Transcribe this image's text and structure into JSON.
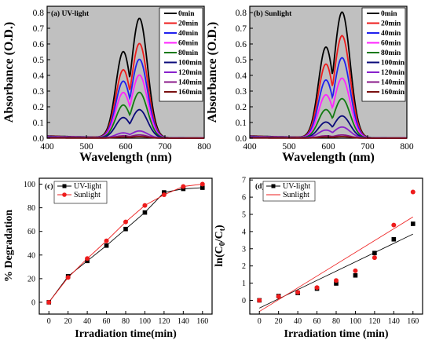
{
  "chart_data": [
    {
      "type": "line",
      "panel_label": "(a) UV-light",
      "xlabel": "Wavelength (nm)",
      "ylabel": "Absorbance (O.D.)",
      "xlim": [
        400,
        800
      ],
      "ylim": [
        0.0,
        0.84
      ],
      "x_ticks": [
        "400",
        "500",
        "600",
        "700",
        "800"
      ],
      "y_ticks": [
        "0.0",
        "0.1",
        "0.2",
        "0.3",
        "0.4",
        "0.5",
        "0.6",
        "0.7",
        "0.8"
      ],
      "background": "#c0c0c0",
      "legend_position": "top-right",
      "peak_wavelength": 635,
      "series": [
        {
          "name": "0min",
          "peak": 0.76,
          "color": "#000000"
        },
        {
          "name": "20min",
          "peak": 0.6,
          "color": "#ee1c1c"
        },
        {
          "name": "40min",
          "peak": 0.5,
          "color": "#2020ee"
        },
        {
          "name": "60min",
          "peak": 0.4,
          "color": "#ff22ff"
        },
        {
          "name": "80min",
          "peak": 0.29,
          "color": "#127a12"
        },
        {
          "name": "100min",
          "peak": 0.18,
          "color": "#0a0a7a"
        },
        {
          "name": "120min",
          "peak": 0.045,
          "color": "#8822cc"
        },
        {
          "name": "140min",
          "peak": 0.02,
          "color": "#8a1a8a"
        },
        {
          "name": "160min",
          "peak": 0.01,
          "color": "#7a1010"
        }
      ]
    },
    {
      "type": "line",
      "panel_label": "(b) Sunlight",
      "xlabel": "Wavelength (nm)",
      "ylabel": "Absorbance (O.D.)",
      "xlim": [
        400,
        800
      ],
      "ylim": [
        0.0,
        0.84
      ],
      "x_ticks": [
        "400",
        "500",
        "600",
        "700",
        "800"
      ],
      "y_ticks": [
        "0.0",
        "0.1",
        "0.2",
        "0.3",
        "0.4",
        "0.5",
        "0.6",
        "0.7",
        "0.8"
      ],
      "background": "#c0c0c0",
      "legend_position": "top-right",
      "peak_wavelength": 635,
      "series": [
        {
          "name": "0min",
          "peak": 0.8,
          "color": "#000000"
        },
        {
          "name": "20min",
          "peak": 0.65,
          "color": "#ee1c1c"
        },
        {
          "name": "40min",
          "peak": 0.51,
          "color": "#2020ee"
        },
        {
          "name": "60min",
          "peak": 0.38,
          "color": "#ff22ff"
        },
        {
          "name": "80min",
          "peak": 0.25,
          "color": "#127a12"
        },
        {
          "name": "100min",
          "peak": 0.14,
          "color": "#0a0a7a"
        },
        {
          "name": "120min",
          "peak": 0.07,
          "color": "#8822cc"
        },
        {
          "name": "140min",
          "peak": 0.02,
          "color": "#8a1a8a"
        },
        {
          "name": "160min",
          "peak": 0.01,
          "color": "#7a1010"
        }
      ]
    },
    {
      "type": "line",
      "panel_label": "(c)",
      "xlabel": "Irradiation time(min)",
      "ylabel": "% Degradation",
      "xlim": [
        -10,
        170
      ],
      "ylim": [
        -10,
        105
      ],
      "x_ticks": [
        "0",
        "20",
        "40",
        "60",
        "80",
        "100",
        "120",
        "140",
        "160"
      ],
      "y_ticks": [
        "0",
        "20",
        "40",
        "60",
        "80",
        "100"
      ],
      "background": "#ffffff",
      "legend_position": "top-left",
      "x": [
        0,
        20,
        40,
        60,
        80,
        100,
        120,
        140,
        160
      ],
      "series": [
        {
          "name": "UV-light",
          "marker": "square",
          "color": "#000000",
          "values": [
            0,
            22,
            35,
            48,
            62,
            76,
            93,
            96,
            97
          ]
        },
        {
          "name": "Sunlight",
          "marker": "circle",
          "color": "#ee1c1c",
          "values": [
            0,
            21,
            37,
            52,
            68,
            82,
            91,
            98,
            100
          ]
        }
      ]
    },
    {
      "type": "scatter",
      "panel_label": "(d)",
      "xlabel": "Irradiation time (min)",
      "ylabel": "ln(C0/Ct)",
      "xlim": [
        -10,
        170
      ],
      "ylim": [
        -0.8,
        7.1
      ],
      "x_ticks": [
        "0",
        "20",
        "40",
        "60",
        "80",
        "100",
        "120",
        "140",
        "160"
      ],
      "y_ticks": [
        "0",
        "1",
        "2",
        "3",
        "4",
        "5",
        "6",
        "7"
      ],
      "background": "#ffffff",
      "legend_position": "top-left",
      "x": [
        0,
        20,
        40,
        60,
        80,
        100,
        120,
        140,
        160
      ],
      "series": [
        {
          "name": "UV-light",
          "marker": "square",
          "color": "#000000",
          "values": [
            0,
            0.25,
            0.43,
            0.68,
            0.98,
            1.45,
            2.75,
            3.55,
            4.45
          ],
          "fit": [
            -0.45,
            3.85
          ]
        },
        {
          "name": "Sunlight",
          "marker": "circle",
          "color": "#ee1c1c",
          "values": [
            0,
            0.22,
            0.47,
            0.74,
            1.15,
            1.72,
            2.48,
            4.38,
            6.3
          ],
          "fit": [
            -0.65,
            4.85
          ]
        }
      ]
    }
  ]
}
